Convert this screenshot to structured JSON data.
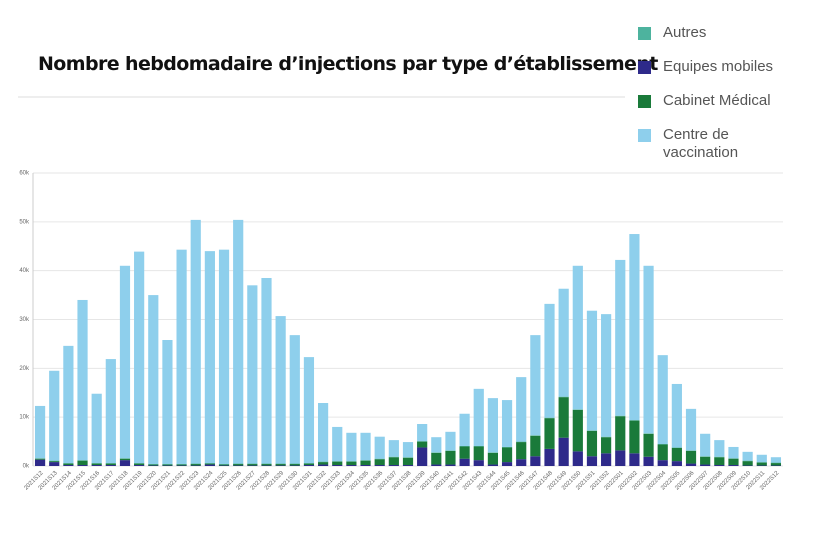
{
  "chart_data": {
    "type": "stacked_bar",
    "title": "Nombre hebdomadaire d’injections par type d’établissement",
    "categories": [
      "2021S12",
      "2021S13",
      "2021S14",
      "2021S15",
      "2021S16",
      "2021S17",
      "2021S18",
      "2021S19",
      "2021S20",
      "2021S21",
      "2021S22",
      "2021S23",
      "2021S24",
      "2021S25",
      "2021S26",
      "2021S27",
      "2021S28",
      "2021S29",
      "2021S30",
      "2021S31",
      "2021S32",
      "2021S33",
      "2021S34",
      "2021S35",
      "2021S36",
      "2021S37",
      "2021S38",
      "2021S39",
      "2021S40",
      "2021S41",
      "2021S42",
      "2021S43",
      "2021S44",
      "2021S45",
      "2021S46",
      "2021S47",
      "2021S48",
      "2021S49",
      "2021S50",
      "2021S51",
      "2021S52",
      "2022S01",
      "2022S02",
      "2022S03",
      "2022S04",
      "2022S05",
      "2022S06",
      "2022S07",
      "2022S08",
      "2022S09",
      "2022S10",
      "2022S11",
      "2022S12"
    ],
    "series": [
      {
        "name": "Autres",
        "color": "#4db39e",
        "values": [
          100,
          100,
          100,
          100,
          100,
          100,
          100,
          100,
          100,
          100,
          100,
          100,
          100,
          100,
          100,
          100,
          100,
          100,
          100,
          100,
          100,
          100,
          100,
          100,
          100,
          100,
          100,
          100,
          100,
          100,
          100,
          100,
          100,
          100,
          100,
          100,
          100,
          100,
          100,
          100,
          100,
          100,
          100,
          100,
          100,
          100,
          100,
          100,
          100,
          100,
          100,
          100,
          100
        ]
      },
      {
        "name": "Equipes mobiles",
        "color": "#2e2a8a",
        "values": [
          1300,
          800,
          200,
          200,
          200,
          200,
          1200,
          200,
          100,
          100,
          100,
          100,
          300,
          100,
          100,
          100,
          100,
          100,
          100,
          200,
          300,
          200,
          200,
          200,
          200,
          200,
          200,
          3800,
          300,
          300,
          1500,
          1200,
          300,
          800,
          1400,
          2000,
          3500,
          5800,
          3000,
          2000,
          2600,
          3200,
          2600,
          1900,
          1200,
          1000,
          500,
          300,
          200,
          200,
          100,
          100,
          100
        ]
      },
      {
        "name": "Cabinet Médical",
        "color": "#1a7a3a",
        "values": [
          200,
          200,
          300,
          900,
          300,
          300,
          300,
          300,
          200,
          200,
          200,
          300,
          200,
          200,
          300,
          300,
          300,
          300,
          300,
          300,
          500,
          700,
          700,
          900,
          1200,
          1600,
          1500,
          1200,
          2400,
          2800,
          2500,
          2800,
          2400,
          3000,
          3500,
          4200,
          6300,
          8300,
          8500,
          5200,
          3300,
          7000,
          6700,
          4700,
          3200,
          2700,
          2600,
          1600,
          1600,
          1300,
          900,
          600,
          500
        ]
      },
      {
        "name": "Centre de vaccination",
        "color": "#8ecfec",
        "values": [
          10700,
          18400,
          24000,
          32800,
          14200,
          21300,
          39400,
          43300,
          34600,
          25400,
          43900,
          49900,
          43400,
          43900,
          49900,
          36500,
          38000,
          30200,
          26300,
          21700,
          12000,
          7000,
          5800,
          5600,
          4500,
          3400,
          3100,
          3500,
          3100,
          3800,
          6600,
          11700,
          11100,
          9600,
          13200,
          20500,
          23300,
          22100,
          29400,
          24500,
          25100,
          31900,
          38100,
          34300,
          18200,
          13000,
          8500,
          4600,
          3400,
          2300,
          1800,
          1500,
          1100
        ]
      }
    ],
    "ylim": [
      0,
      60000
    ],
    "yticks": [
      {
        "value": 0,
        "label": "0k"
      },
      {
        "value": 10000,
        "label": "10k"
      },
      {
        "value": 20000,
        "label": "20k"
      },
      {
        "value": 30000,
        "label": "30k"
      },
      {
        "value": 40000,
        "label": "40k"
      },
      {
        "value": 50000,
        "label": "50k"
      },
      {
        "value": 60000,
        "label": "60k"
      }
    ],
    "grid": true
  }
}
